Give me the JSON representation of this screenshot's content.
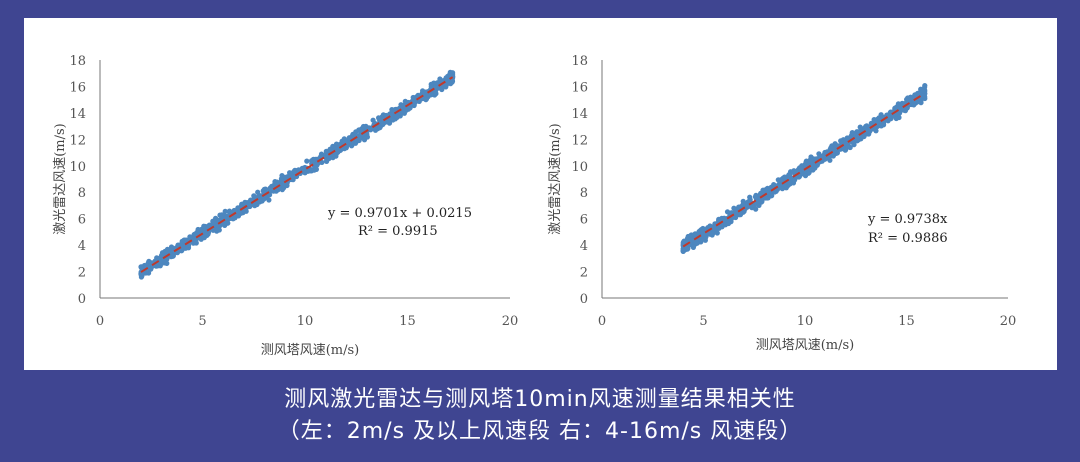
{
  "caption": {
    "line1": "测风激光雷达与测风塔10min风速测量结果相关性",
    "line2": "（左：2m/s 及以上风速段 右：4-16m/s 风速段）"
  },
  "colors": {
    "background": "#3f4591",
    "panel": "#ffffff",
    "points": "#4d87bf",
    "trendline": "#c0392b"
  },
  "chart_data": [
    {
      "type": "scatter",
      "xlabel": "测风塔风速(m/s)",
      "ylabel": "激光雷达风速(m/s)",
      "xlim": [
        0,
        20
      ],
      "ylim": [
        0,
        18
      ],
      "x_ticks": [
        "0",
        "5",
        "10",
        "15",
        "20"
      ],
      "y_ticks": [
        "0",
        "2",
        "4",
        "6",
        "8",
        "10",
        "12",
        "14",
        "16",
        "18"
      ],
      "grid": false,
      "x_range": [
        2,
        17.2
      ],
      "fit": {
        "slope": 0.9701,
        "intercept": 0.0215,
        "x_range": [
          2,
          17.2
        ]
      },
      "equation": "y = 0.9701x + 0.0215",
      "r2": "R² = 0.9915"
    },
    {
      "type": "scatter",
      "xlabel": "测风塔风速(m/s)",
      "ylabel": "激光雷达风速(m/s)",
      "xlim": [
        0,
        20
      ],
      "ylim": [
        0,
        18
      ],
      "x_ticks": [
        "0",
        "5",
        "10",
        "15",
        "20"
      ],
      "y_ticks": [
        "0",
        "2",
        "4",
        "6",
        "8",
        "10",
        "12",
        "14",
        "16",
        "18"
      ],
      "grid": false,
      "x_range": [
        4,
        15.9
      ],
      "fit": {
        "slope": 0.9738,
        "intercept": 0,
        "x_range": [
          4,
          15.8
        ]
      },
      "equation": "y = 0.9738x",
      "r2": "R² = 0.9886"
    }
  ]
}
